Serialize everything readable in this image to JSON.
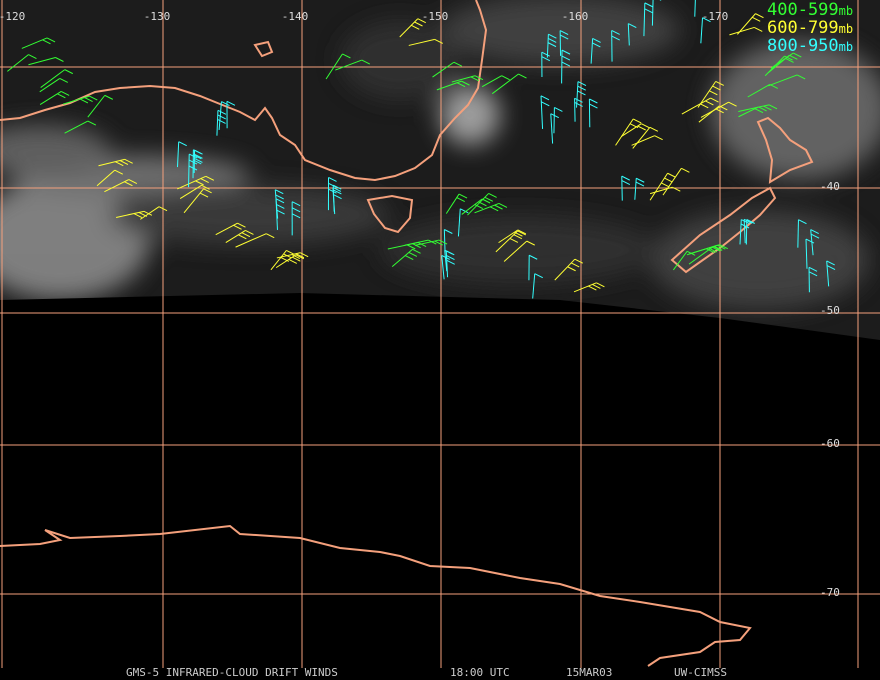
{
  "map": {
    "longitude_labels": [
      "-120",
      "-130",
      "-140",
      "-150",
      "-160",
      "-170"
    ],
    "latitude_labels": [
      "-40",
      "-50",
      "-60",
      "-70"
    ],
    "legend": [
      {
        "range": "400-599",
        "unit": "mb",
        "color": "#33ff33"
      },
      {
        "range": "600-799",
        "unit": "mb",
        "color": "#ffff33"
      },
      {
        "range": "800-950",
        "unit": "mb",
        "color": "#33ffff"
      }
    ],
    "footer": [
      "GMS-5 INFRARED-CLOUD DRIFT WINDS",
      "18:00 UTC",
      "15MAR03",
      "UW-CIMSS"
    ]
  }
}
